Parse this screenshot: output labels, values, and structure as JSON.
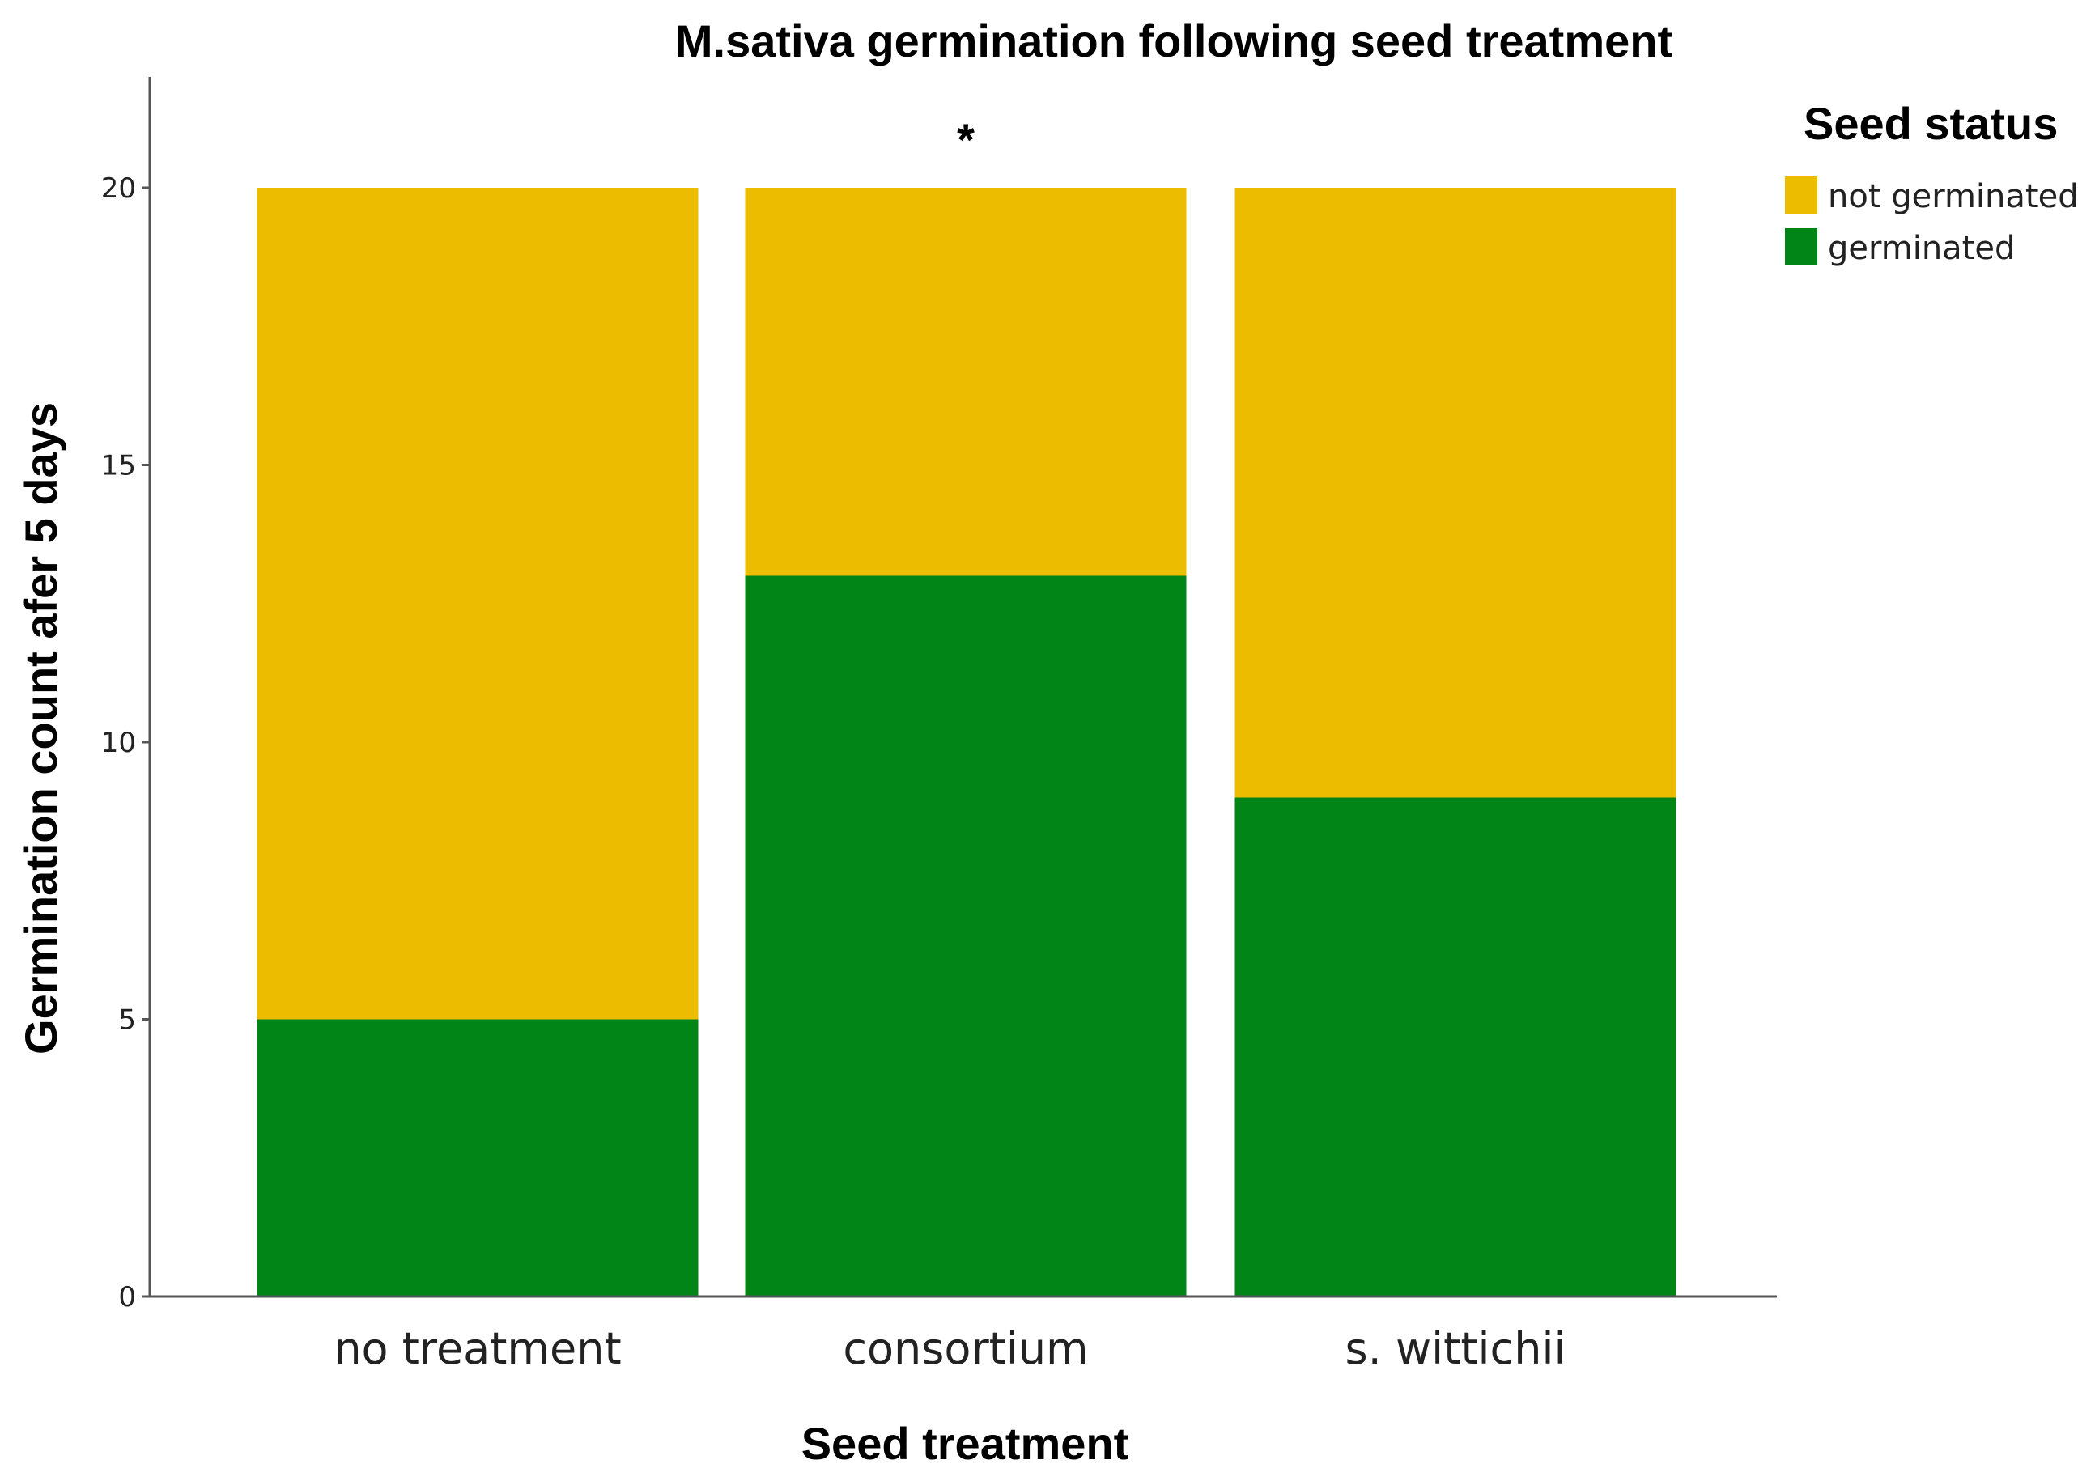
{
  "chart_data": {
    "type": "bar",
    "stacked": true,
    "title": "M.sativa germination following seed treatment",
    "xlabel": "Seed treatment",
    "ylabel": "Germination count afer 5 days",
    "categories": [
      "no treatment",
      "consortium",
      "s. wittichii"
    ],
    "series": [
      {
        "name": "germinated",
        "color": "#008516",
        "values": [
          5,
          13,
          9
        ]
      },
      {
        "name": "not germinated",
        "color": "#ECBC00",
        "values": [
          15,
          7,
          11
        ]
      }
    ],
    "ylim": [
      0,
      22
    ],
    "yticks": [
      0,
      5,
      10,
      15,
      20
    ],
    "legend": {
      "title": "Seed status",
      "position": "top-right",
      "order": [
        "not germinated",
        "germinated"
      ]
    },
    "annotations": [
      {
        "category": "consortium",
        "text": "*"
      }
    ],
    "grid": false
  }
}
